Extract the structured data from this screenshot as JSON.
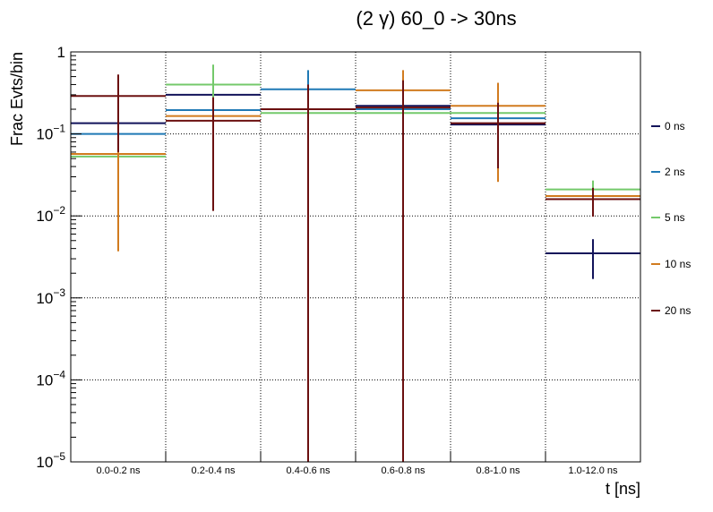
{
  "chart_data": {
    "type": "line",
    "title": "(2 γ) 60_0 -> 30ns",
    "xlabel": "t [ns]",
    "ylabel": "Frac Evts/bin",
    "categories": [
      "0.0-0.2 ns",
      "0.2-0.4 ns",
      "0.4-0.6 ns",
      "0.6-0.8 ns",
      "0.8-1.0 ns",
      "1.0-12.0 ns"
    ],
    "y_scale": "log",
    "ylim": [
      1e-05,
      1
    ],
    "y_ticks": [
      {
        "value": 1,
        "base": "1",
        "exp": ""
      },
      {
        "value": 0.1,
        "base": "10",
        "exp": "−1"
      },
      {
        "value": 0.01,
        "base": "10",
        "exp": "−2"
      },
      {
        "value": 0.001,
        "base": "10",
        "exp": "−3"
      },
      {
        "value": 0.0001,
        "base": "10",
        "exp": "−4"
      },
      {
        "value": 1e-05,
        "base": "10",
        "exp": "−5"
      }
    ],
    "grid": true,
    "legend_position": "right",
    "series": [
      {
        "name": "0 ns",
        "color": "#12135a",
        "values": [
          0.135,
          0.3,
          0,
          0.22,
          0.13,
          0.0035
        ],
        "err_low": [
          null,
          null,
          null,
          null,
          null,
          0.0017
        ],
        "err_high": [
          null,
          null,
          null,
          null,
          null,
          0.0052
        ]
      },
      {
        "name": "2 ns",
        "color": "#1f79b5",
        "values": [
          0.1,
          0.195,
          0.35,
          0.2,
          0.155,
          0.0175
        ],
        "err_low": [
          null,
          null,
          1e-05,
          null,
          null,
          null
        ],
        "err_high": [
          null,
          null,
          0.6,
          null,
          null,
          null
        ]
      },
      {
        "name": "5 ns",
        "color": "#74c96b",
        "values": [
          0.053,
          0.4,
          0.18,
          0.18,
          0.18,
          0.021
        ],
        "err_low": [
          null,
          0.14,
          1e-05,
          null,
          null,
          0.0165
        ],
        "err_high": [
          null,
          0.7,
          0.4,
          null,
          null,
          0.027
        ]
      },
      {
        "name": "10 ns",
        "color": "#d17b1f",
        "values": [
          0.057,
          0.165,
          0.2,
          0.34,
          0.22,
          0.0175
        ],
        "err_low": [
          0.0037,
          null,
          null,
          1e-05,
          0.026,
          null
        ],
        "err_high": [
          0.2,
          null,
          null,
          0.6,
          0.42,
          null
        ]
      },
      {
        "name": "20 ns",
        "color": "#6b1010",
        "values": [
          0.29,
          0.145,
          0.2,
          0.21,
          0.135,
          0.016
        ],
        "err_low": [
          0.06,
          0.0115,
          1e-05,
          1e-05,
          0.038,
          0.0098
        ],
        "err_high": [
          0.53,
          0.28,
          0.4,
          0.45,
          0.24,
          0.022
        ]
      }
    ]
  }
}
